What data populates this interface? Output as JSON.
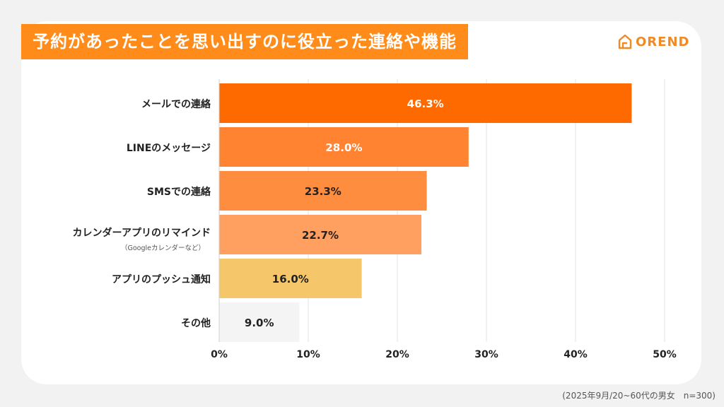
{
  "title": "予約があったことを思い出すのに役立った連絡や機能",
  "logo": {
    "text": "OREND",
    "icon": "house-outline-icon",
    "color": "#f08a24"
  },
  "footnote": "(2025年9月/20~60代の男女　n=300)",
  "colors": {
    "title_bg": "#ff8c1a",
    "bars": [
      "#ff6a00",
      "#ff8330",
      "#ff8d40",
      "#ffa061",
      "#f6c76a",
      "#f4f4f4"
    ],
    "label_colors": [
      "#ffffff",
      "#ffffff",
      "#222222",
      "#222222",
      "#222222",
      "#222222"
    ]
  },
  "chart_data": {
    "type": "bar",
    "orientation": "horizontal",
    "categories": [
      "メールでの連絡",
      "LINEのメッセージ",
      "SMSでの連絡",
      "カレンダーアプリのリマインド",
      "アプリのプッシュ通知",
      "その他"
    ],
    "category_notes": [
      "",
      "",
      "",
      "（Googleカレンダーなど）",
      "",
      ""
    ],
    "values": [
      46.3,
      28.0,
      23.3,
      22.7,
      16.0,
      9.0
    ],
    "value_labels": [
      "46.3%",
      "28.0%",
      "23.3%",
      "22.7%",
      "16.0%",
      "9.0%"
    ],
    "xlim": [
      0,
      50
    ],
    "xticks": [
      "0%",
      "10%",
      "20%",
      "30%",
      "40%",
      "50%"
    ],
    "grid": true
  }
}
